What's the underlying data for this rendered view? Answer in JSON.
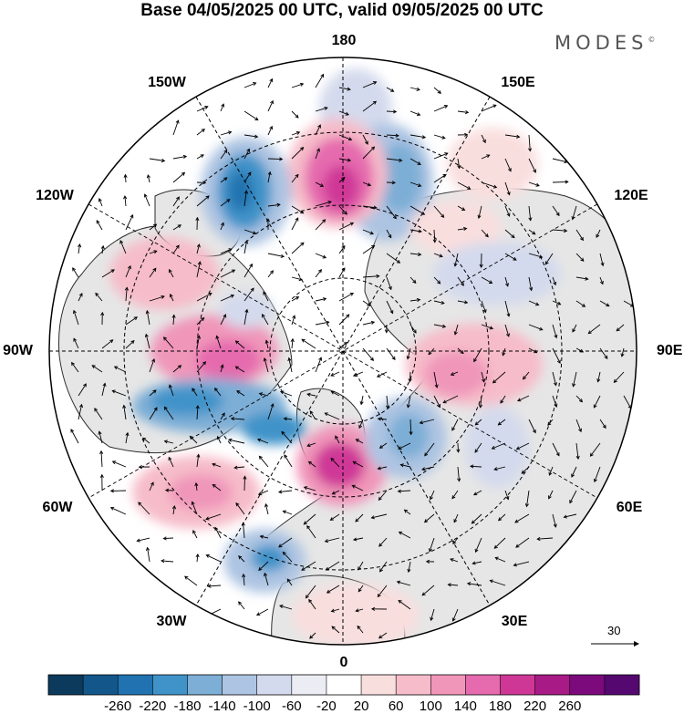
{
  "title": "Base 04/05/2025 00 UTC, valid 09/05/2025 00 UTC",
  "brand": "MODES",
  "brand_mark": "©",
  "lon_labels": {
    "top": "180",
    "bottom": "0",
    "left": "90W",
    "right": "90E",
    "upper_left_outer": "150W",
    "upper_left": "120W",
    "lower_left": "60W",
    "lower_left_outer": "30W",
    "upper_right_outer": "150E",
    "upper_right": "120E",
    "lower_right": "60E",
    "lower_right_outer": "30E"
  },
  "wind_scale": {
    "label": "30"
  },
  "colorbar": {
    "colors": [
      "#0b3a5c",
      "#13578a",
      "#2073b0",
      "#3f93c9",
      "#7daed6",
      "#adc4e2",
      "#d4daed",
      "#ececf5",
      "#ffffff",
      "#f9dede",
      "#f6bcc9",
      "#f096b9",
      "#e56aae",
      "#cf3797",
      "#a81a85",
      "#7c0a7c",
      "#540870"
    ],
    "ticks": [
      "-260",
      "-220",
      "-180",
      "-140",
      "-100",
      "-60",
      "-20",
      "20",
      "60",
      "100",
      "140",
      "180",
      "220",
      "260"
    ]
  }
}
